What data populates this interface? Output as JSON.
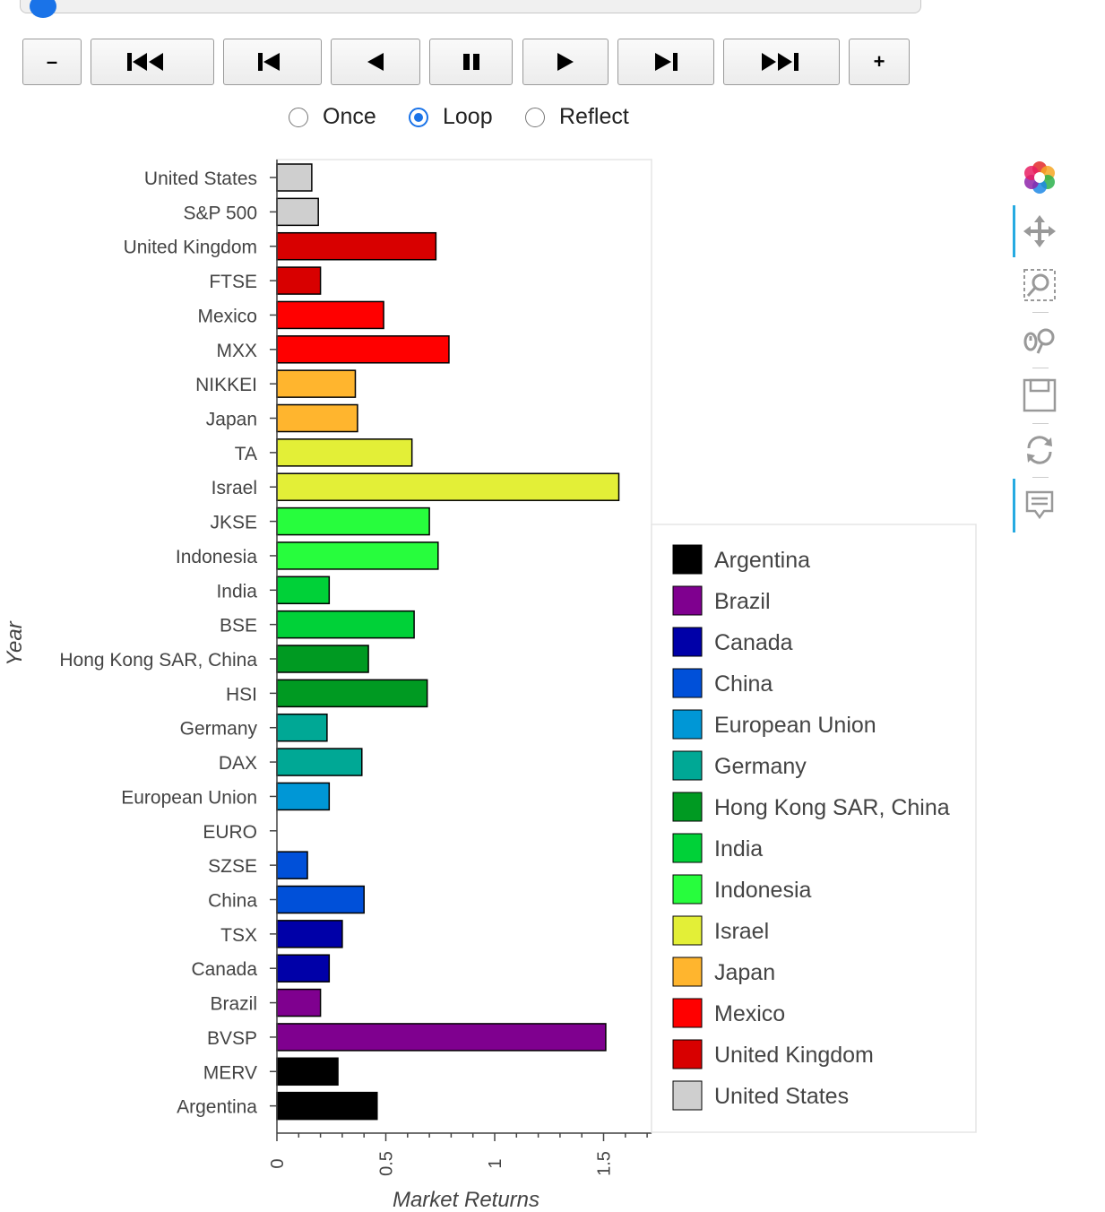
{
  "player": {
    "buttons": [
      "–",
      "+"
    ],
    "modes": [
      "Once",
      "Loop",
      "Reflect"
    ],
    "selected_mode": "Loop"
  },
  "chart_data": {
    "type": "bar",
    "orientation": "horizontal",
    "xlabel": "Market Returns",
    "ylabel": "Year",
    "xlim": [
      0,
      1.7
    ],
    "x_ticks": [
      "0",
      "0.5",
      "1",
      "1.5"
    ],
    "grid": false,
    "legend_placement": "right",
    "categories": [
      "United States",
      "S&P 500",
      "United Kingdom",
      "FTSE",
      "Mexico",
      "MXX",
      "NIKKEI",
      "Japan",
      "TA",
      "Israel",
      "JKSE",
      "Indonesia",
      "India",
      "BSE",
      "Hong Kong SAR, China",
      "HSI",
      "Germany",
      "DAX",
      "European Union",
      "EURO",
      "SZSE",
      "China",
      "TSX",
      "Canada",
      "Brazil",
      "BVSP",
      "MERV",
      "Argentina"
    ],
    "values": [
      0.16,
      0.19,
      0.73,
      0.2,
      0.49,
      0.79,
      0.36,
      0.37,
      0.62,
      1.57,
      0.7,
      0.74,
      0.24,
      0.63,
      0.42,
      0.69,
      0.23,
      0.39,
      0.24,
      0,
      0.14,
      0.4,
      0.3,
      0.24,
      0.2,
      1.51,
      0.28,
      0.46
    ],
    "bar_groups": [
      "United States",
      "United States",
      "United Kingdom",
      "United Kingdom",
      "Mexico",
      "Mexico",
      "Japan",
      "Japan",
      "Israel",
      "Israel",
      "Indonesia",
      "Indonesia",
      "India",
      "India",
      "Hong Kong SAR, China",
      "Hong Kong SAR, China",
      "Germany",
      "Germany",
      "European Union",
      "European Union",
      "China",
      "China",
      "Canada",
      "Canada",
      "Brazil",
      "Brazil",
      "Argentina",
      "Argentina"
    ],
    "legend": [
      {
        "name": "Argentina",
        "color": "#000000"
      },
      {
        "name": "Brazil",
        "color": "#7f008f"
      },
      {
        "name": "Canada",
        "color": "#0000a8"
      },
      {
        "name": "China",
        "color": "#0050d9"
      },
      {
        "name": "European Union",
        "color": "#0097d6"
      },
      {
        "name": "Germany",
        "color": "#00a895"
      },
      {
        "name": "Hong Kong SAR, China",
        "color": "#009a22"
      },
      {
        "name": "India",
        "color": "#00d138"
      },
      {
        "name": "Indonesia",
        "color": "#27fd3d"
      },
      {
        "name": "Israel",
        "color": "#e3ef37"
      },
      {
        "name": "Japan",
        "color": "#ffb52e"
      },
      {
        "name": "Mexico",
        "color": "#ff0000"
      },
      {
        "name": "United Kingdom",
        "color": "#d80000"
      },
      {
        "name": "United States",
        "color": "#cfcfcf"
      }
    ]
  },
  "toolbar": {
    "icons": [
      "bokeh-logo-icon",
      "pan-icon",
      "box-zoom-icon",
      "wheel-zoom-icon",
      "save-icon",
      "reset-icon",
      "hover-icon"
    ]
  }
}
